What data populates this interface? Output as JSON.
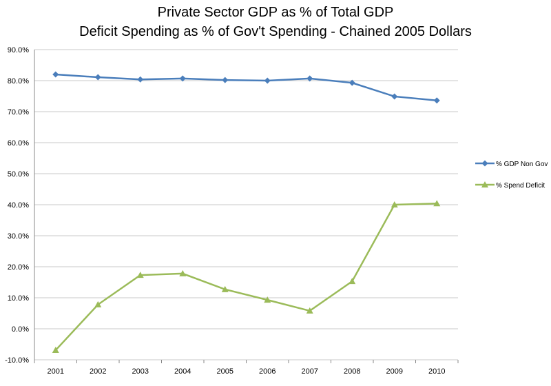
{
  "chart_data": {
    "type": "line",
    "title": [
      "Private Sector GDP as % of Total GDP",
      "Deficit Spending as % of Gov't Spending - Chained 2005 Dollars"
    ],
    "categories": [
      "2001",
      "2002",
      "2003",
      "2004",
      "2005",
      "2006",
      "2007",
      "2008",
      "2009",
      "2010"
    ],
    "ylim": [
      -10,
      90
    ],
    "yticks": [
      "-10.0%",
      "0.0%",
      "10.0%",
      "20.0%",
      "30.0%",
      "40.0%",
      "50.0%",
      "60.0%",
      "70.0%",
      "80.0%",
      "90.0%"
    ],
    "grid": "horizontal",
    "legend": "right",
    "series": [
      {
        "name": "% GDP Non Gov",
        "color": "#4a7ebb",
        "marker": "diamond",
        "values": [
          82.0,
          81.1,
          80.4,
          80.7,
          80.2,
          80.0,
          80.7,
          79.3,
          74.9,
          73.6
        ]
      },
      {
        "name": "% Spend Deficit",
        "color": "#9bbb59",
        "marker": "triangle",
        "values": [
          -6.9,
          7.8,
          17.3,
          17.8,
          12.7,
          9.3,
          5.8,
          15.3,
          40.0,
          40.4
        ]
      }
    ]
  }
}
